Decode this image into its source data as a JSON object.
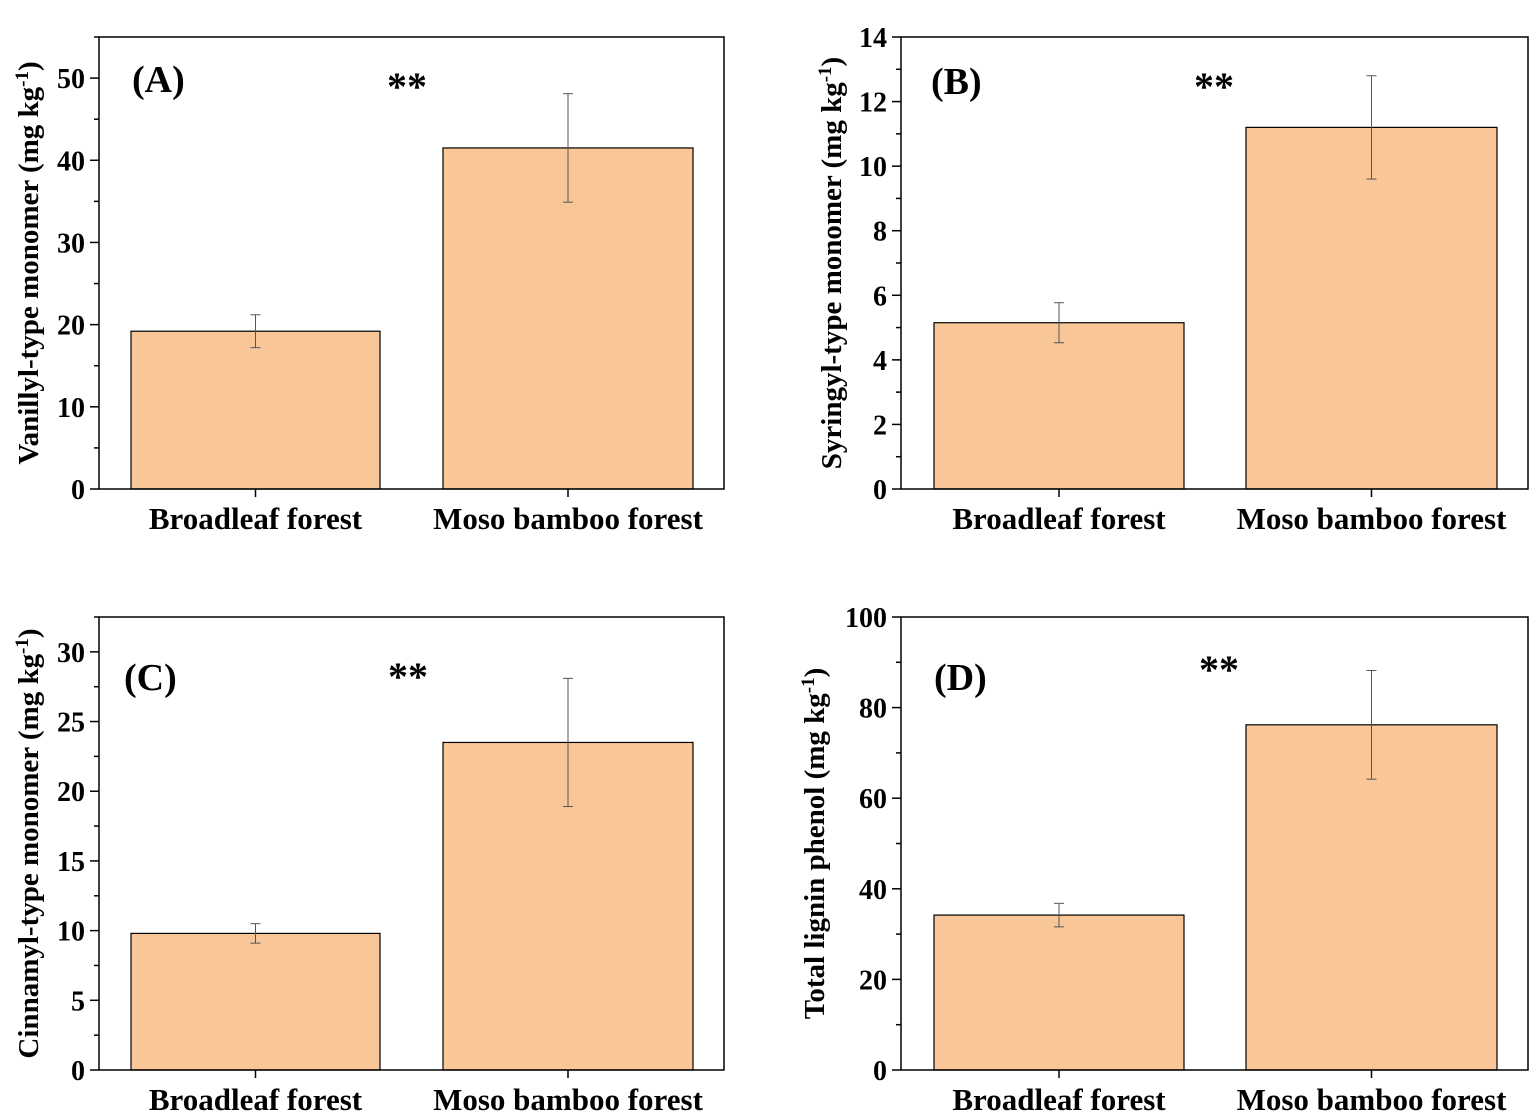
{
  "chart_data": [
    {
      "type": "bar",
      "panel_label": "(A)",
      "significance": "**",
      "categories": [
        "Broadleaf forest",
        "Moso bamboo forest"
      ],
      "values": [
        19.2,
        41.5
      ],
      "errors": [
        2.0,
        6.6
      ],
      "ylabel_main": "Vanillyl-type monomer (mg kg",
      "ylabel_sup": "-1",
      "ylabel_end": ")",
      "ylim": [
        0,
        55
      ],
      "yticks": [
        0,
        10,
        20,
        30,
        40,
        50
      ],
      "minor_step": 5,
      "bar_color": "#f9c797"
    },
    {
      "type": "bar",
      "panel_label": "(B)",
      "significance": "**",
      "categories": [
        "Broadleaf forest",
        "Moso bamboo forest"
      ],
      "values": [
        5.15,
        11.2
      ],
      "errors": [
        0.62,
        1.6
      ],
      "ylabel_main": "Syringyl-type monomer (mg kg",
      "ylabel_sup": "-1",
      "ylabel_end": ")",
      "ylim": [
        0,
        14
      ],
      "yticks": [
        0,
        2,
        4,
        6,
        8,
        10,
        12,
        14
      ],
      "minor_step": 1,
      "bar_color": "#f9c797"
    },
    {
      "type": "bar",
      "panel_label": "(C)",
      "significance": "**",
      "categories": [
        "Broadleaf forest",
        "Moso bamboo forest"
      ],
      "values": [
        9.8,
        23.5
      ],
      "errors": [
        0.7,
        4.6
      ],
      "ylabel_main": "Cinnamyl-type monomer (mg kg",
      "ylabel_sup": "-1",
      "ylabel_end": ")",
      "ylim": [
        0,
        32.5
      ],
      "yticks": [
        0,
        5,
        10,
        15,
        20,
        25,
        30
      ],
      "minor_step": 2.5,
      "bar_color": "#f9c797"
    },
    {
      "type": "bar",
      "panel_label": "(D)",
      "significance": "**",
      "categories": [
        "Broadleaf forest",
        "Moso bamboo forest"
      ],
      "values": [
        34.2,
        76.2
      ],
      "errors": [
        2.6,
        12.0
      ],
      "ylabel_main": "Total lignin phenol (mg kg",
      "ylabel_sup": "-1",
      "ylabel_end": ")",
      "ylim": [
        0,
        100
      ],
      "yticks": [
        0,
        20,
        40,
        60,
        80,
        100
      ],
      "minor_step": 10,
      "bar_color": "#f9c797"
    }
  ]
}
